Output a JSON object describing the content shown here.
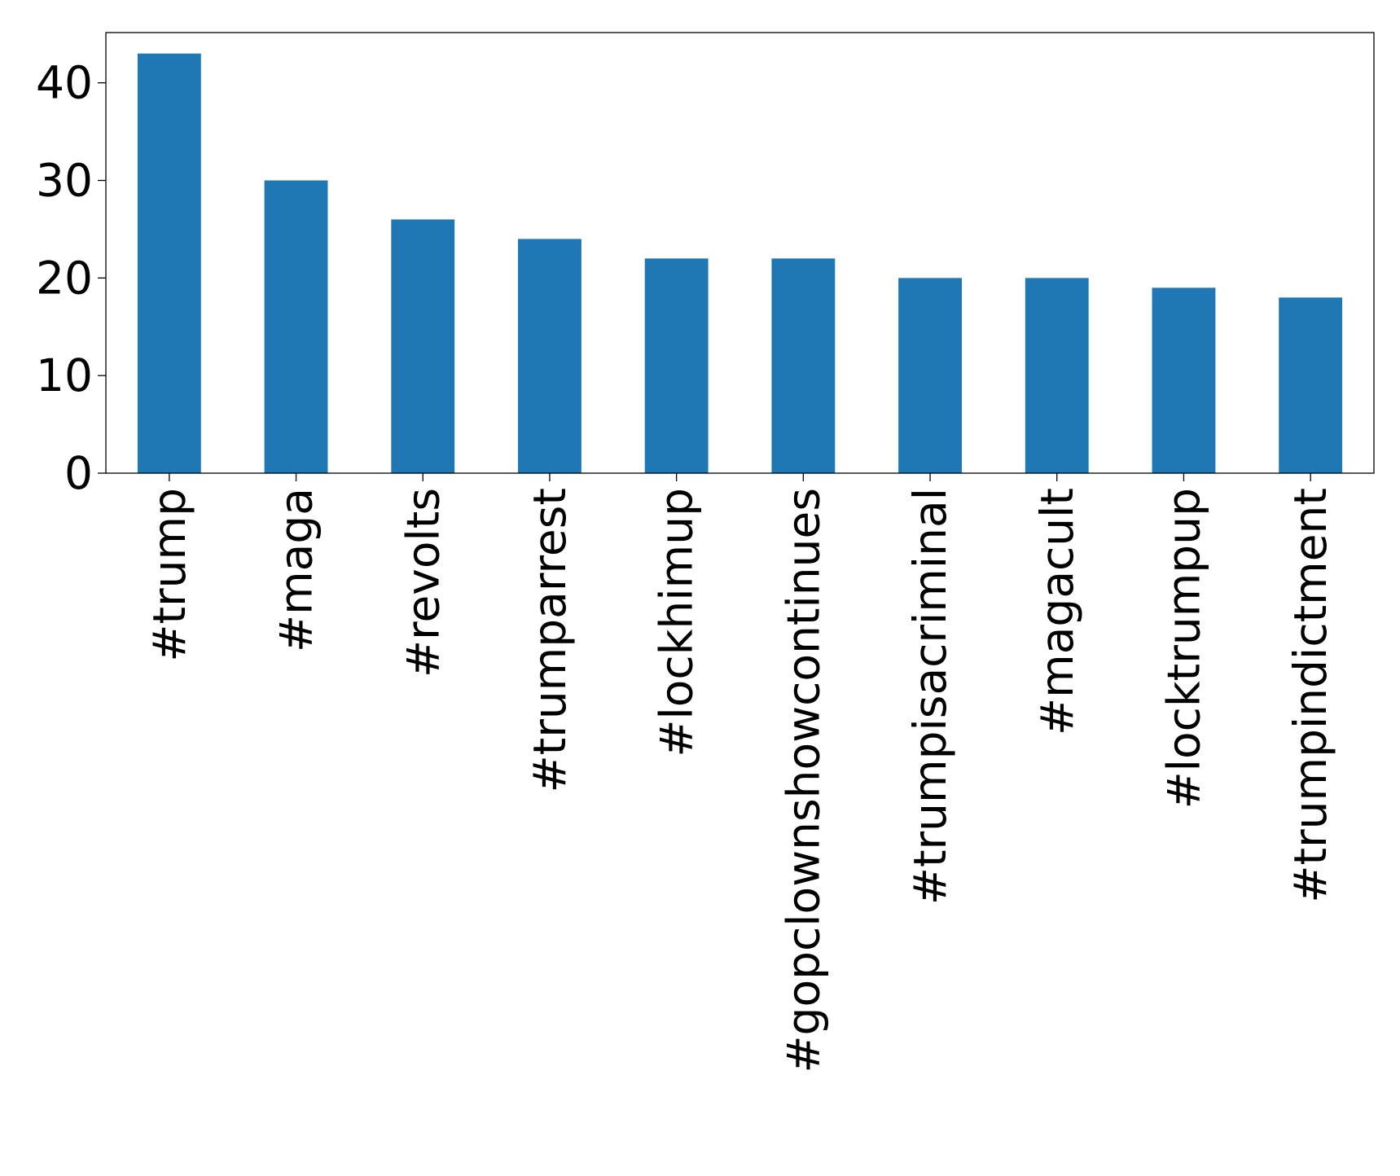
{
  "chart_data": {
    "type": "bar",
    "categories": [
      "#trump",
      "#maga",
      "#revolts",
      "#trumparrest",
      "#lockhimup",
      "#gopclownshowcontinues",
      "#trumpisacriminal",
      "#magacult",
      "#locktrumpup",
      "#trumpindictment"
    ],
    "values": [
      43,
      30,
      26,
      24,
      22,
      22,
      20,
      20,
      19,
      18
    ],
    "color": "#1f77b4",
    "ylim": [
      0,
      45.15
    ],
    "yticks": [
      0,
      10,
      20,
      30,
      40
    ],
    "grid": false
  }
}
